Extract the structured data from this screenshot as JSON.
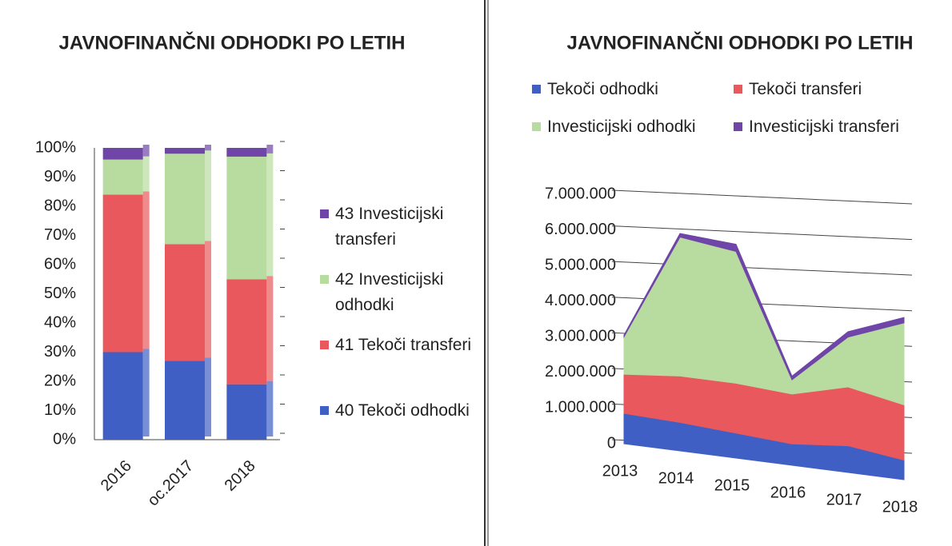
{
  "chart_data": [
    {
      "type": "bar",
      "stacked": true,
      "title": "JAVNOFINANČNI ODHODKI PO LETIH",
      "categories": [
        "2016",
        "oc.2017",
        "2018"
      ],
      "series": [
        {
          "name": "40 Tekoči odhodki",
          "color": "#3f5fc4",
          "values": [
            30,
            27,
            19
          ]
        },
        {
          "name": "41 Tekoči transferi",
          "color": "#e8585c",
          "values": [
            54,
            40,
            36
          ]
        },
        {
          "name": "42 Investicijski odhodki",
          "color": "#b8dba0",
          "values": [
            12,
            31,
            42
          ]
        },
        {
          "name": "43 Investicijski transferi",
          "color": "#6f45a8",
          "values": [
            4,
            2,
            3
          ]
        }
      ],
      "ylim": [
        0,
        100
      ],
      "yticks": [
        {
          "value": 0,
          "label": "0%"
        },
        {
          "value": 10,
          "label": "10%"
        },
        {
          "value": 20,
          "label": "20%"
        },
        {
          "value": 30,
          "label": "30%"
        },
        {
          "value": 40,
          "label": "40%"
        },
        {
          "value": 50,
          "label": "50%"
        },
        {
          "value": 60,
          "label": "60%"
        },
        {
          "value": 70,
          "label": "70%"
        },
        {
          "value": 80,
          "label": "80%"
        },
        {
          "value": 90,
          "label": "90%"
        },
        {
          "value": 100,
          "label": "100%"
        }
      ],
      "legend": "right"
    },
    {
      "type": "area",
      "stacked": true,
      "title": "JAVNOFINANČNI ODHODKI PO LETIH",
      "categories": [
        "2013",
        "2014",
        "2015",
        "2016",
        "2017",
        "2018"
      ],
      "series": [
        {
          "name": "Tekoči odhodki",
          "color": "#3f5fc4",
          "values": [
            850000,
            800000,
            700000,
            600000,
            750000,
            550000
          ]
        },
        {
          "name": "Tekoči transferi",
          "color": "#e8585c",
          "values": [
            1100000,
            1300000,
            1400000,
            1400000,
            1650000,
            1550000
          ]
        },
        {
          "name": "Investicijski odhodki",
          "color": "#b8dba0",
          "values": [
            1050000,
            3900000,
            3700000,
            400000,
            1400000,
            2300000
          ]
        },
        {
          "name": "Investicijski transferi",
          "color": "#6f45a8",
          "values": [
            50000,
            100000,
            200000,
            100000,
            150000,
            150000
          ]
        }
      ],
      "ylim": [
        0,
        7000000
      ],
      "yticks": [
        0,
        {
          "value": 1000000,
          "label": "1.000.000"
        },
        {
          "value": 2000000,
          "label": "2.000.000"
        },
        {
          "value": 3000000,
          "label": "3.000.000"
        },
        {
          "value": 4000000,
          "label": "4.000.000"
        },
        {
          "value": 5000000,
          "label": "5.000.000"
        },
        {
          "value": 6000000,
          "label": "6.000.000"
        },
        {
          "value": 7000000,
          "label": "7.000.000"
        }
      ],
      "grid": true,
      "legend": "top"
    }
  ]
}
